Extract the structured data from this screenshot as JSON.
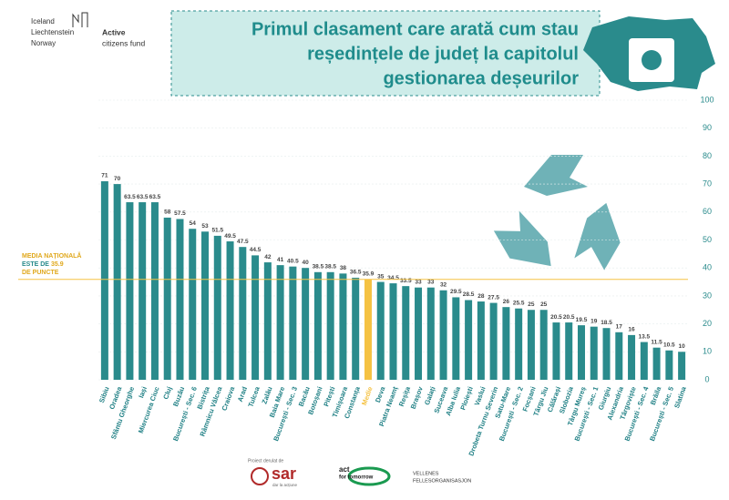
{
  "header": {
    "donors": [
      "Iceland",
      "Liechtenstein",
      "Norway"
    ],
    "fund": [
      "Active",
      "citizens fund"
    ]
  },
  "chart_data": {
    "type": "bar",
    "title": [
      "Primul clasament care arată cum stau",
      "reședințele de județ la capitolul",
      "gestionarea deșeurilor"
    ],
    "categories": [
      "Sibiu",
      "Oradea",
      "Sfântu Gheorghe",
      "Iași",
      "Miercurea Ciuc",
      "Cluj",
      "Buzău",
      "București - Sec. 6",
      "Bistrița",
      "Râmnicu Vâlcea",
      "Craiova",
      "Arad",
      "Tulcea",
      "Zalău",
      "Baia Mare",
      "București - Sec. 3",
      "Bacău",
      "Botoșani",
      "Pitești",
      "Timișoara",
      "Constanța",
      "Medie",
      "Deva",
      "Piatra Neamț",
      "Reșița",
      "Brașov",
      "Galați",
      "Suceava",
      "Alba Iulia",
      "Ploiești",
      "Vaslui",
      "Drobeta Turnu Severin",
      "Satu-Mare",
      "București - Sec. 2",
      "Focșani",
      "Târgu Jiu",
      "Călărași",
      "Slobozia",
      "Târgu Mureș",
      "București - Sec. 1",
      "Giurgiu",
      "Alexandria",
      "Târgoviște",
      "București - Sec. 4",
      "Brăila",
      "București - Sec. 5",
      "Slatina"
    ],
    "values": [
      71,
      70,
      63.5,
      63.5,
      63.5,
      58,
      57.5,
      54,
      53,
      51.5,
      49.5,
      47.5,
      44.5,
      42,
      41,
      40.5,
      40,
      38.5,
      38.5,
      38,
      36.5,
      35.9,
      35,
      34.5,
      33.5,
      33,
      33,
      32,
      29.5,
      28.5,
      28,
      27.5,
      26,
      25.5,
      25,
      25,
      20.5,
      20.5,
      19.5,
      19,
      18.5,
      17,
      16,
      13.5,
      11.5,
      10.5,
      10
    ],
    "colors": [
      "#2a8b8c",
      "#2a8b8c",
      "#2a8b8c",
      "#2a8b8c",
      "#2a8b8c",
      "#2a8b8c",
      "#2a8b8c",
      "#2a8b8c",
      "#2a8b8c",
      "#2a8b8c",
      "#2a8b8c",
      "#2a8b8c",
      "#2a8b8c",
      "#2a8b8c",
      "#2a8b8c",
      "#2a8b8c",
      "#2a8b8c",
      "#2a8b8c",
      "#2a8b8c",
      "#2a8b8c",
      "#2a8b8c",
      "#f5c243",
      "#2a8b8c",
      "#2a8b8c",
      "#2a8b8c",
      "#2a8b8c",
      "#2a8b8c",
      "#2a8b8c",
      "#2a8b8c",
      "#2a8b8c",
      "#2a8b8c",
      "#2a8b8c",
      "#2a8b8c",
      "#2a8b8c",
      "#2a8b8c",
      "#2a8b8c",
      "#2a8b8c",
      "#2a8b8c",
      "#2a8b8c",
      "#2a8b8c",
      "#2a8b8c",
      "#2a8b8c",
      "#2a8b8c",
      "#2a8b8c",
      "#2a8b8c",
      "#2a8b8c",
      "#2a8b8c"
    ],
    "ylim": [
      0,
      100
    ],
    "yticks": [
      0,
      10,
      20,
      30,
      40,
      50,
      60,
      70,
      80,
      90,
      100
    ],
    "grid": true,
    "reference_line": {
      "value": 35.9,
      "color": "#f5c243"
    },
    "annotation": [
      "MEDIA NAȚIONALĂ",
      "ESTE DE",
      "DE PUNCTE"
    ]
  },
  "footer": {
    "project": "Proiect derulat de",
    "sar": "sar",
    "sar_tagline": "dar la acțiune",
    "act": [
      "act",
      "for tomorrow"
    ],
    "vellenes": [
      "VELLENES",
      "FELLESORGANISASJON"
    ]
  }
}
